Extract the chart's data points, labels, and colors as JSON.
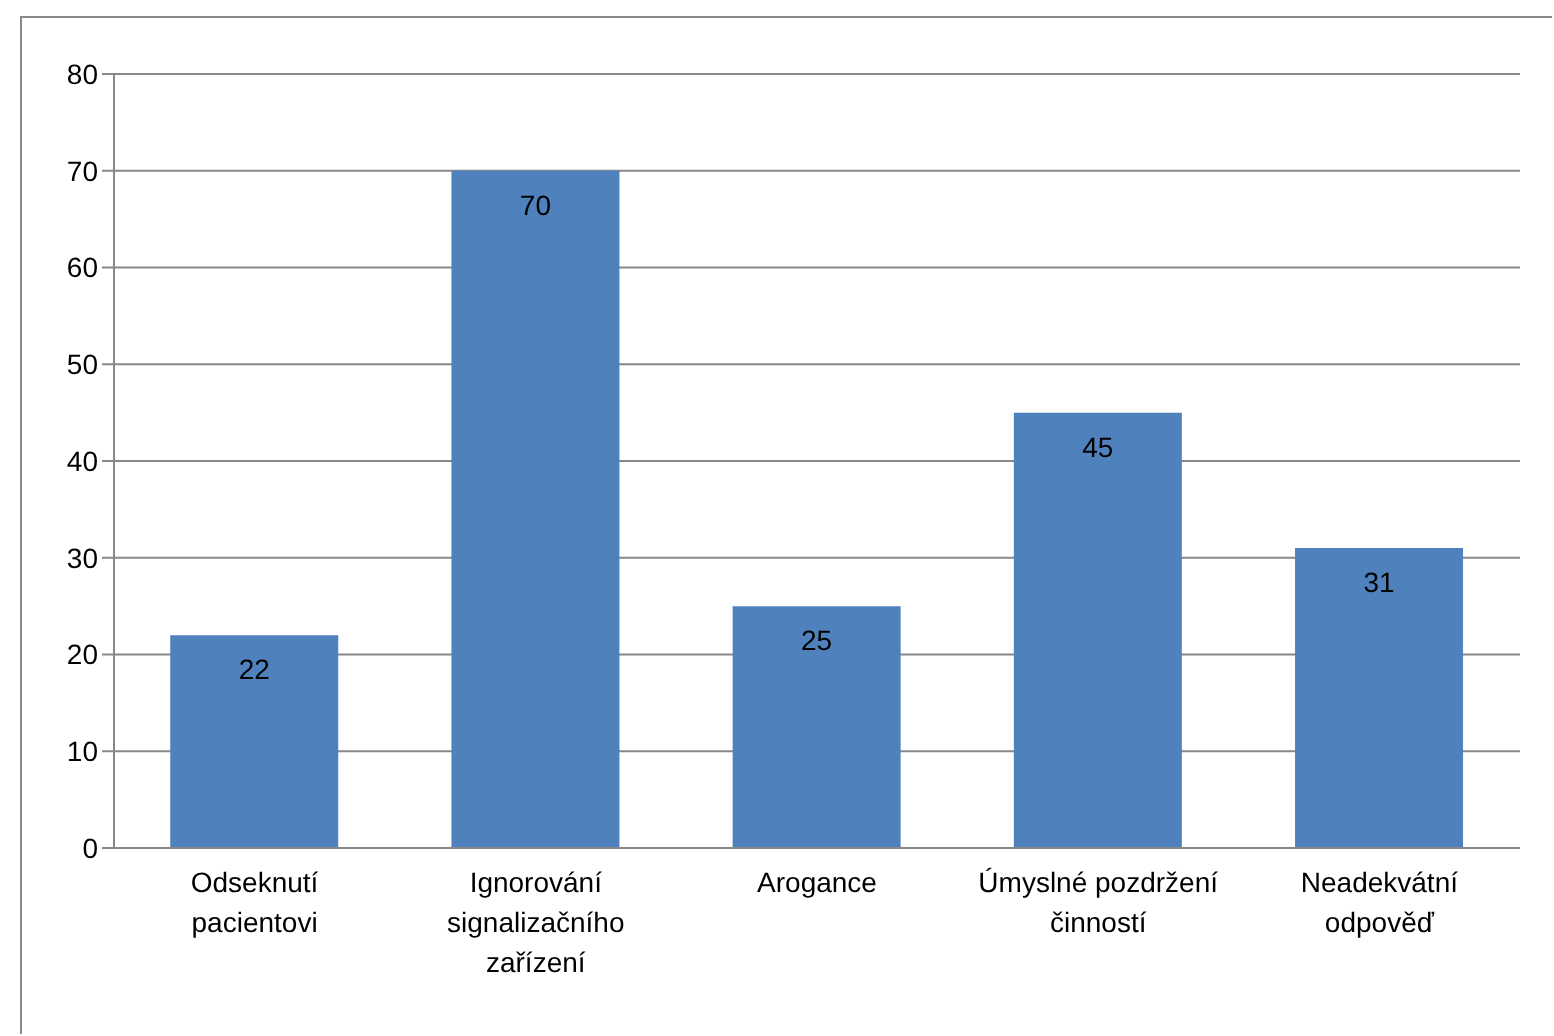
{
  "chart_data": {
    "type": "bar",
    "categories": [
      "Odseknutí pacientovi",
      "Ignorování signalizačního zařízení",
      "Arogance",
      "Úmyslné pozdržení činností",
      "Neadekvátní odpověď"
    ],
    "values": [
      22,
      70,
      25,
      45,
      31
    ],
    "color": "#4f81bd",
    "ylim": [
      0,
      80
    ],
    "yticks": [
      0,
      10,
      20,
      30,
      40,
      50,
      60,
      70,
      80
    ],
    "grid": "y",
    "data_labels": true
  }
}
